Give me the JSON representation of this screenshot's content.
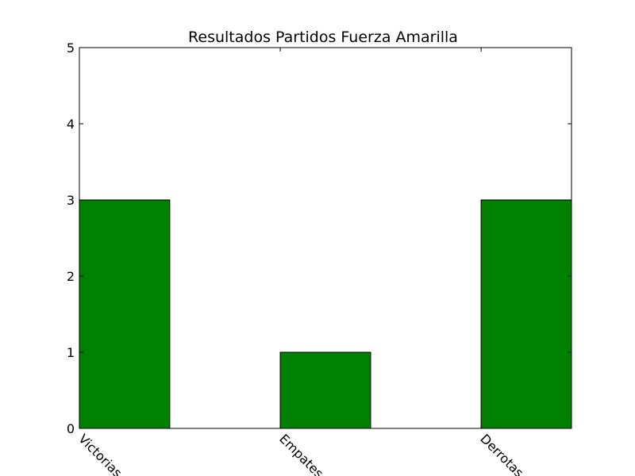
{
  "chart_data": {
    "type": "bar",
    "title": "Resultados Partidos Fuerza Amarilla",
    "xlabel": "",
    "ylabel": "",
    "categories": [
      "Victorias",
      "Empates",
      "Derrotas"
    ],
    "values": [
      3,
      1,
      3
    ],
    "ylim": [
      0,
      5
    ],
    "yticks": [
      0,
      1,
      2,
      3,
      4,
      5
    ],
    "xtick_rotation": "-45deg",
    "grid": false,
    "legend": "none",
    "colors": {
      "bar_fill": "#008000",
      "bar_edge": "#000000",
      "axes": "#000000",
      "background": "#ffffff"
    }
  }
}
